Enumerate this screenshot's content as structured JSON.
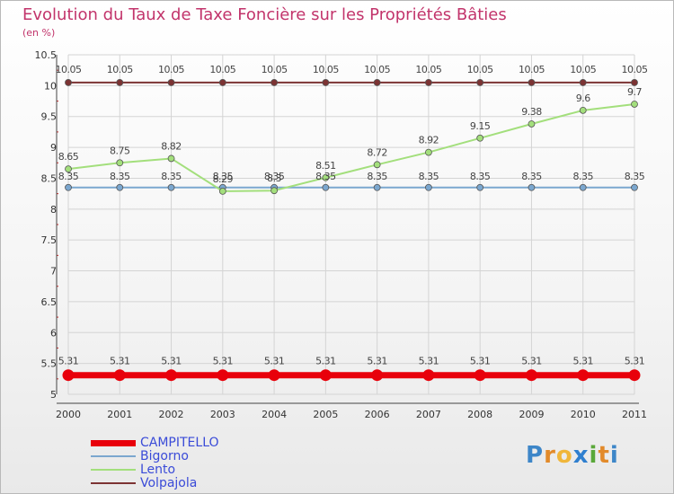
{
  "header": {
    "title": "Evolution du Taux de Taxe Foncière sur les Propriétés Bâties",
    "unit": "(en %)"
  },
  "chart_data": {
    "type": "line",
    "title": "Evolution du Taux de Taxe Foncière sur les Propriétés Bâties",
    "ylabel": "(en %)",
    "xlabel": "",
    "x": [
      "2000",
      "2001",
      "2002",
      "2003",
      "2004",
      "2005",
      "2006",
      "2007",
      "2008",
      "2009",
      "2010",
      "2011"
    ],
    "ylim": [
      5,
      10.5
    ],
    "yticks": [
      "5",
      "5.5",
      "6",
      "6.5",
      "7",
      "7.5",
      "8",
      "8.5",
      "9",
      "9.5",
      "10",
      "10.5"
    ],
    "grid": true,
    "series": [
      {
        "name": "CAMPITELLO",
        "color": "#e8000b",
        "values": [
          5.31,
          5.31,
          5.31,
          5.31,
          5.31,
          5.31,
          5.31,
          5.31,
          5.31,
          5.31,
          5.31,
          5.31
        ],
        "labels": [
          "5.31",
          "5.31",
          "5.31",
          "5.31",
          "5.31",
          "5.31",
          "5.31",
          "5.31",
          "5.31",
          "5.31",
          "5.31",
          "5.31"
        ]
      },
      {
        "name": "Bigorno",
        "color": "#7ba7cf",
        "values": [
          8.35,
          8.35,
          8.35,
          8.35,
          8.35,
          8.35,
          8.35,
          8.35,
          8.35,
          8.35,
          8.35,
          8.35
        ],
        "labels": [
          "8.35",
          "8.35",
          "8.35",
          "8.35",
          "8.35",
          "8.35",
          "8.35",
          "8.35",
          "8.35",
          "8.35",
          "8.35",
          "8.35"
        ]
      },
      {
        "name": "Lento",
        "color": "#a3df7c",
        "values": [
          8.65,
          8.75,
          8.82,
          8.29,
          8.3,
          8.51,
          8.72,
          8.92,
          9.15,
          9.38,
          9.6,
          9.7
        ],
        "labels": [
          "8.65",
          "8.75",
          "8.82",
          "8.29",
          "8.3",
          "8.51",
          "8.72",
          "8.92",
          "9.15",
          "9.38",
          "9.6",
          "9.7"
        ]
      },
      {
        "name": "Volpajola",
        "color": "#7c3333",
        "values": [
          10.05,
          10.05,
          10.05,
          10.05,
          10.05,
          10.05,
          10.05,
          10.05,
          10.05,
          10.05,
          10.05,
          10.05
        ],
        "labels": [
          "10.05",
          "10.05",
          "10.05",
          "10.05",
          "10.05",
          "10.05",
          "10.05",
          "10.05",
          "10.05",
          "10.05",
          "10.05",
          "10.05"
        ]
      }
    ],
    "legend_position": "bottom-left"
  },
  "legend": {
    "items": [
      "CAMPITELLO",
      "Bigorno",
      "Lento",
      "Volpajola"
    ]
  },
  "logo": {
    "text": "Proxiti",
    "letters": [
      "P",
      "r",
      "o",
      "x",
      "i",
      "t",
      "i"
    ]
  },
  "colors": {
    "title": "#c2346b",
    "legend_text": "#3a4bd8",
    "grid": "#d4d4d4"
  }
}
